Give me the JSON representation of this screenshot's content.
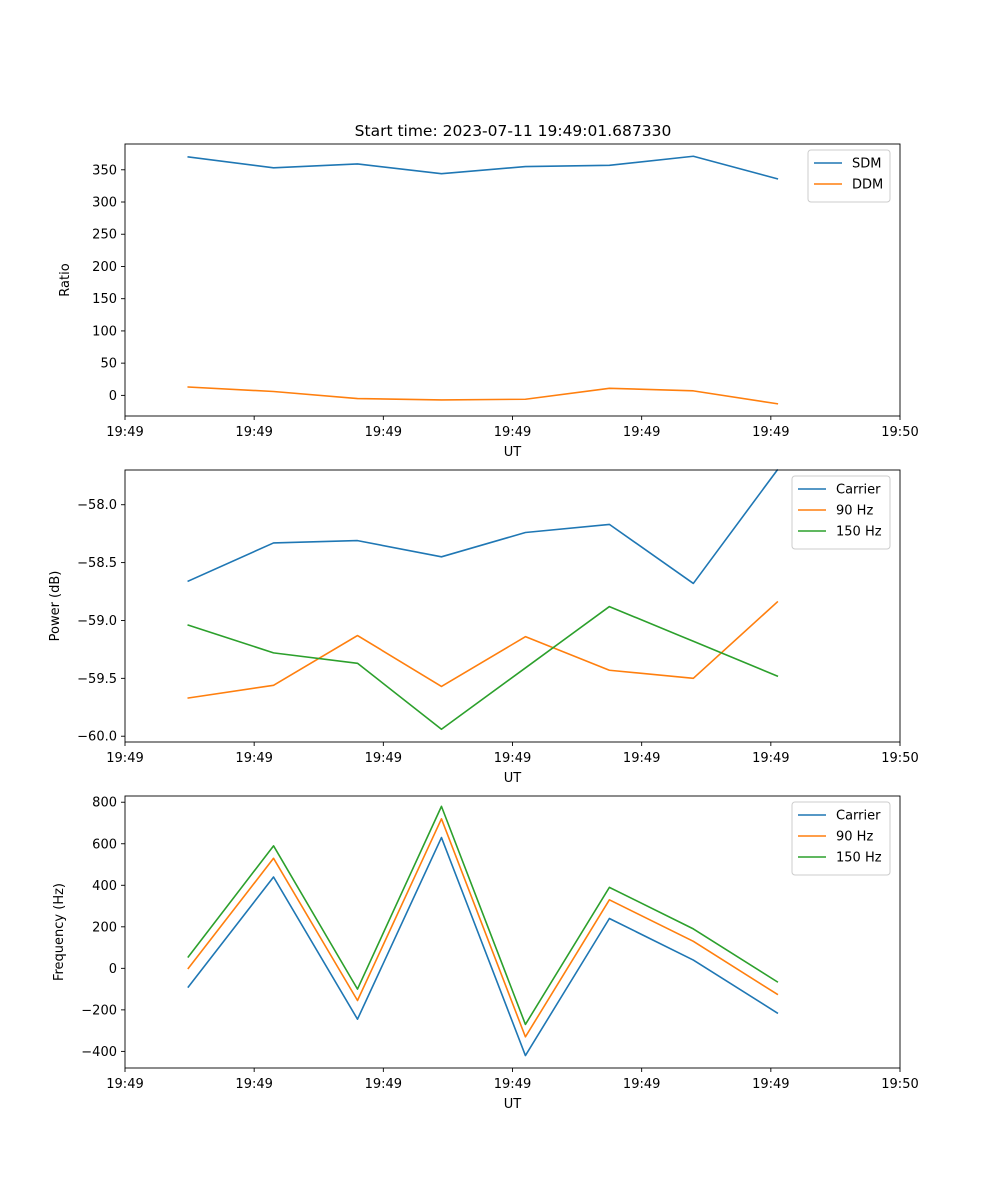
{
  "title": "Start time: 2023-07-11 19:49:01.687330",
  "colors": {
    "c0": "#1f77b4",
    "c1": "#ff7f0e",
    "c2": "#2ca02c"
  },
  "chart_data": [
    {
      "type": "line",
      "title": "Start time: 2023-07-11 19:49:01.687330",
      "xlabel": "UT",
      "ylabel": "Ratio",
      "xlim": [
        0,
        6
      ],
      "ylim": [
        -32,
        390
      ],
      "x_ticks": [
        0,
        1,
        2,
        3,
        4,
        5,
        6
      ],
      "x_tick_labels": [
        "19:49",
        "19:49",
        "19:49",
        "19:49",
        "19:49",
        "19:49",
        "19:50"
      ],
      "y_ticks": [
        0,
        50,
        100,
        150,
        200,
        250,
        300,
        350
      ],
      "y_tick_labels": [
        "0",
        "50",
        "100",
        "150",
        "200",
        "250",
        "300",
        "350"
      ],
      "legend_position": "top-right",
      "x": [
        0.49,
        1.15,
        1.8,
        2.45,
        3.1,
        3.75,
        4.4,
        5.05
      ],
      "series": [
        {
          "name": "SDM",
          "color": "#1f77b4",
          "values": [
            370,
            353,
            359,
            344,
            355,
            357,
            371,
            336
          ]
        },
        {
          "name": "DDM",
          "color": "#ff7f0e",
          "values": [
            13,
            6,
            -5,
            -7,
            -6,
            11,
            7,
            -13
          ]
        }
      ]
    },
    {
      "type": "line",
      "xlabel": "UT",
      "ylabel": "Power (dB)",
      "xlim": [
        0,
        6
      ],
      "ylim": [
        -60.05,
        -57.7
      ],
      "x_ticks": [
        0,
        1,
        2,
        3,
        4,
        5,
        6
      ],
      "x_tick_labels": [
        "19:49",
        "19:49",
        "19:49",
        "19:49",
        "19:49",
        "19:49",
        "19:50"
      ],
      "y_ticks": [
        -60.0,
        -59.5,
        -59.0,
        -58.5,
        -58.0
      ],
      "y_tick_labels": [
        "−60.0",
        "−59.5",
        "−59.0",
        "−58.5",
        "−58.0"
      ],
      "legend_position": "top-right",
      "x": [
        0.49,
        1.15,
        1.8,
        2.45,
        3.1,
        3.75,
        4.4,
        5.05
      ],
      "series": [
        {
          "name": "Carrier",
          "color": "#1f77b4",
          "values": [
            -58.66,
            -58.33,
            -58.31,
            -58.45,
            -58.24,
            -58.17,
            -58.68,
            -57.7
          ]
        },
        {
          "name": "90 Hz",
          "color": "#ff7f0e",
          "values": [
            -59.67,
            -59.56,
            -59.13,
            -59.57,
            -59.14,
            -59.43,
            -59.5,
            -58.84
          ]
        },
        {
          "name": "150 Hz",
          "color": "#2ca02c",
          "values": [
            -59.04,
            -59.28,
            -59.37,
            -59.94,
            -59.41,
            -58.88,
            -59.18,
            -59.48
          ]
        }
      ]
    },
    {
      "type": "line",
      "xlabel": "UT",
      "ylabel": "Frequency (Hz)",
      "xlim": [
        0,
        6
      ],
      "ylim": [
        -480,
        830
      ],
      "x_ticks": [
        0,
        1,
        2,
        3,
        4,
        5,
        6
      ],
      "x_tick_labels": [
        "19:49",
        "19:49",
        "19:49",
        "19:49",
        "19:49",
        "19:49",
        "19:50"
      ],
      "y_ticks": [
        -400,
        -200,
        0,
        200,
        400,
        600,
        800
      ],
      "y_tick_labels": [
        "−400",
        "−200",
        "0",
        "200",
        "400",
        "600",
        "800"
      ],
      "legend_position": "top-right",
      "x": [
        0.49,
        1.15,
        1.8,
        2.45,
        3.1,
        3.75,
        4.4,
        5.05
      ],
      "series": [
        {
          "name": "Carrier",
          "color": "#1f77b4",
          "values": [
            -90,
            440,
            -245,
            630,
            -420,
            240,
            40,
            -215
          ]
        },
        {
          "name": "90 Hz",
          "color": "#ff7f0e",
          "values": [
            0,
            530,
            -155,
            720,
            -330,
            330,
            130,
            -125
          ]
        },
        {
          "name": "150 Hz",
          "color": "#2ca02c",
          "values": [
            55,
            590,
            -100,
            780,
            -270,
            390,
            190,
            -65
          ]
        }
      ]
    }
  ]
}
